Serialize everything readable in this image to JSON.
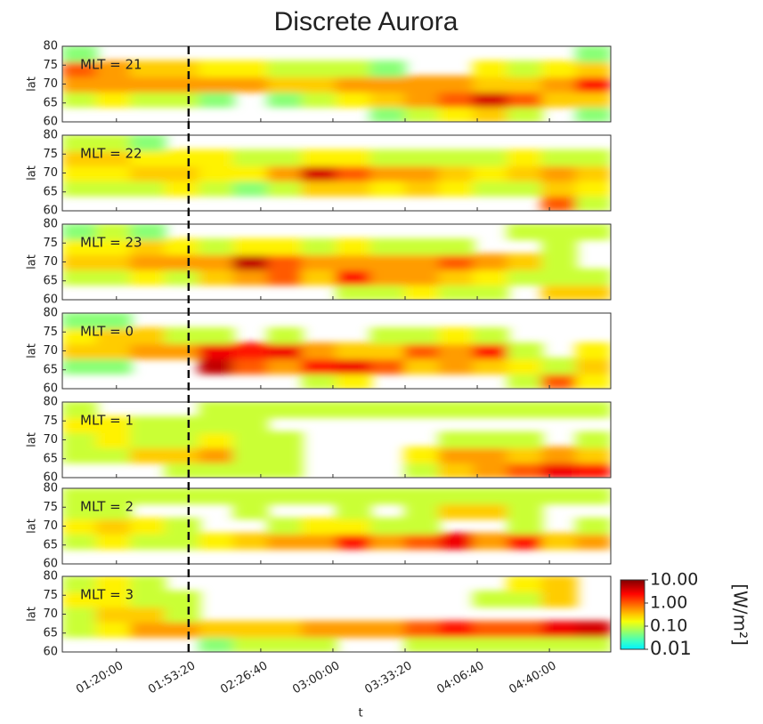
{
  "chart_data": {
    "type": "heatmap",
    "title": "Discrete Aurora",
    "xlabel": "t",
    "ylabel": "lat",
    "xlim": [
      3300,
      18500
    ],
    "xbins": [
      3300,
      4250,
      5200,
      6150,
      7100,
      8050,
      9000,
      9950,
      10900,
      11850,
      12800,
      13750,
      14700,
      15650,
      16600,
      17550,
      18500
    ],
    "xticks": [
      {
        "value": 4800,
        "label": "01:20:00"
      },
      {
        "value": 6800,
        "label": "01:53:20"
      },
      {
        "value": 8800,
        "label": "02:26:40"
      },
      {
        "value": 10800,
        "label": "03:00:00"
      },
      {
        "value": 12800,
        "label": "03:33:20"
      },
      {
        "value": 14800,
        "label": "04:06:40"
      },
      {
        "value": 16800,
        "label": "04:40:00"
      }
    ],
    "ylim": [
      60,
      80
    ],
    "yticks": [
      60,
      65,
      70,
      75,
      80
    ],
    "ybins": [
      60,
      64,
      68,
      72,
      76,
      80
    ],
    "vline": 6800,
    "clim": [
      0.01,
      10
    ],
    "color_scale": "log",
    "cticks": [
      {
        "value": 10,
        "label": "10.00"
      },
      {
        "value": 1,
        "label": "1.00"
      },
      {
        "value": 0.1,
        "label": "0.10"
      },
      {
        "value": 0.01,
        "label": "0.01"
      }
    ],
    "colorbar_label": "[W/m²]",
    "panels": [
      {
        "label": "MLT = 21",
        "z": [
          [
            null,
            null,
            null,
            null,
            null,
            null,
            null,
            null,
            null,
            0.05,
            0.1,
            0.2,
            0.3,
            0.1,
            null,
            0.05
          ],
          [
            0.1,
            0.2,
            0.1,
            0.1,
            0.05,
            null,
            0.05,
            0.1,
            0.2,
            0.3,
            0.5,
            1,
            4,
            1,
            0.3,
            0.3
          ],
          [
            0.5,
            0.5,
            0.5,
            0.5,
            0.5,
            0.5,
            0.3,
            0.3,
            0.5,
            0.5,
            0.5,
            0.5,
            0.3,
            0.3,
            0.5,
            2
          ],
          [
            1,
            0.5,
            0.3,
            0.3,
            0.2,
            0.2,
            0.1,
            0.1,
            0.1,
            0.05,
            null,
            null,
            0.2,
            0.1,
            0.2,
            0.3
          ],
          [
            0.05,
            null,
            null,
            null,
            null,
            null,
            null,
            null,
            null,
            null,
            null,
            null,
            null,
            null,
            null,
            0.05
          ]
        ]
      },
      {
        "label": "MLT = 22",
        "z": [
          [
            null,
            null,
            null,
            null,
            null,
            null,
            null,
            null,
            null,
            null,
            null,
            null,
            null,
            null,
            1,
            0.1
          ],
          [
            0.1,
            0.1,
            0.1,
            0.2,
            0.1,
            0.05,
            0.1,
            0.3,
            0.3,
            0.2,
            0.3,
            0.2,
            0.1,
            0.1,
            0.3,
            0.2
          ],
          [
            0.2,
            0.2,
            0.3,
            0.3,
            0.2,
            0.2,
            0.5,
            4,
            1,
            0.5,
            0.5,
            0.3,
            0.2,
            0.3,
            0.5,
            0.3
          ],
          [
            0.3,
            0.3,
            0.2,
            0.2,
            0.2,
            0.1,
            0.1,
            0.2,
            0.2,
            0.1,
            0.1,
            0.1,
            0.1,
            0.2,
            0.1,
            0.1
          ],
          [
            0.1,
            0.1,
            0.05,
            null,
            null,
            null,
            null,
            null,
            null,
            null,
            null,
            null,
            null,
            null,
            null,
            null
          ]
        ]
      },
      {
        "label": "MLT = 23",
        "z": [
          [
            null,
            null,
            null,
            null,
            null,
            null,
            null,
            null,
            0.1,
            0.1,
            0.2,
            0.1,
            0.1,
            null,
            0.3,
            0.3
          ],
          [
            0.1,
            0.1,
            0.2,
            0.1,
            0.3,
            0.5,
            1,
            0.3,
            2,
            0.5,
            0.5,
            0.3,
            0.2,
            0.1,
            0.1,
            0.1
          ],
          [
            0.3,
            0.3,
            0.5,
            0.5,
            0.5,
            5,
            1,
            0.5,
            0.5,
            0.5,
            0.5,
            1,
            0.5,
            0.3,
            0.1,
            null
          ],
          [
            0.2,
            0.2,
            0.3,
            0.2,
            0.1,
            0.2,
            0.2,
            0.1,
            0.2,
            0.1,
            0.1,
            0.1,
            null,
            null,
            0.1,
            null
          ],
          [
            0.05,
            0.1,
            0.05,
            null,
            null,
            null,
            null,
            null,
            null,
            null,
            null,
            null,
            null,
            0.1,
            0.1,
            0.1
          ]
        ]
      },
      {
        "label": "MLT = 0",
        "z": [
          [
            null,
            null,
            null,
            null,
            null,
            null,
            null,
            0.1,
            0.2,
            null,
            null,
            null,
            null,
            0.1,
            1,
            0.2
          ],
          [
            0.05,
            0.05,
            null,
            null,
            5,
            1,
            0.5,
            2,
            3,
            1,
            0.3,
            0.5,
            0.3,
            0.2,
            0.1,
            0.3
          ],
          [
            0.3,
            0.3,
            0.5,
            0.5,
            3,
            2,
            3,
            0.5,
            0.3,
            0.3,
            1,
            0.5,
            2,
            0.1,
            null,
            0.2
          ],
          [
            0.2,
            0.3,
            0.3,
            0.1,
            0.1,
            null,
            0.1,
            null,
            null,
            0.1,
            0.1,
            0.2,
            0.1,
            null,
            null,
            null
          ],
          [
            0.05,
            0.05,
            null,
            null,
            null,
            null,
            null,
            null,
            null,
            null,
            null,
            null,
            null,
            null,
            null,
            null
          ]
        ]
      },
      {
        "label": "MLT = 1",
        "z": [
          [
            null,
            null,
            null,
            0.1,
            0.1,
            0.1,
            0.1,
            null,
            null,
            null,
            0.1,
            0.3,
            0.5,
            1,
            3,
            2
          ],
          [
            0.1,
            0.1,
            0.3,
            0.3,
            0.5,
            0.1,
            0.1,
            null,
            null,
            null,
            0.2,
            0.5,
            0.5,
            0.3,
            0.5,
            0.3
          ],
          [
            0.1,
            0.2,
            0.1,
            0.1,
            0.2,
            0.1,
            0.1,
            null,
            null,
            null,
            null,
            0.1,
            0.1,
            0.1,
            null,
            0.1
          ],
          [
            0.2,
            0.2,
            0.1,
            0.1,
            0.1,
            0.1,
            null,
            null,
            null,
            null,
            null,
            null,
            null,
            null,
            null,
            null
          ],
          [
            0.1,
            null,
            null,
            null,
            0.1,
            0.1,
            0.1,
            0.1,
            0.1,
            0.1,
            0.1,
            0.1,
            0.1,
            0.1,
            0.1,
            0.1
          ]
        ]
      },
      {
        "label": "MLT = 2",
        "z": [
          [
            null,
            null,
            null,
            null,
            null,
            null,
            null,
            null,
            null,
            null,
            null,
            null,
            null,
            null,
            null,
            null
          ],
          [
            0.1,
            0.2,
            0.1,
            0.1,
            0.2,
            0.3,
            0.5,
            0.5,
            2,
            0.5,
            1,
            3,
            0.5,
            2,
            0.3,
            0.5
          ],
          [
            0.2,
            0.3,
            0.2,
            0.1,
            null,
            null,
            0.1,
            0.2,
            0.2,
            0.1,
            0.1,
            null,
            null,
            0.1,
            null,
            0.1
          ],
          [
            0.1,
            0.1,
            null,
            null,
            null,
            0.1,
            null,
            null,
            0.1,
            null,
            0.1,
            0.3,
            0.3,
            0.1,
            null,
            null
          ],
          [
            0.1,
            0.1,
            0.1,
            0.1,
            0.1,
            0.1,
            0.1,
            0.1,
            0.1,
            0.1,
            0.1,
            0.1,
            0.1,
            0.1,
            0.1,
            0.1
          ]
        ]
      },
      {
        "label": "MLT = 3",
        "z": [
          [
            null,
            null,
            null,
            null,
            0.05,
            0.1,
            0.1,
            0.1,
            null,
            null,
            0.1,
            0.1,
            0.1,
            0.1,
            0.1,
            0.1
          ],
          [
            0.1,
            0.2,
            0.5,
            0.5,
            0.3,
            0.3,
            0.3,
            0.5,
            0.5,
            0.5,
            1,
            2,
            1,
            1,
            3,
            4
          ],
          [
            0.1,
            0.3,
            0.3,
            0.1,
            null,
            null,
            null,
            null,
            null,
            null,
            null,
            null,
            null,
            null,
            null,
            null
          ],
          [
            0.2,
            0.2,
            0.1,
            0.1,
            null,
            null,
            null,
            null,
            null,
            null,
            null,
            null,
            0.1,
            0.1,
            0.3,
            null
          ],
          [
            0.1,
            0.2,
            0.1,
            null,
            null,
            null,
            null,
            null,
            null,
            null,
            null,
            null,
            null,
            0.2,
            0.3,
            null
          ]
        ]
      }
    ]
  }
}
